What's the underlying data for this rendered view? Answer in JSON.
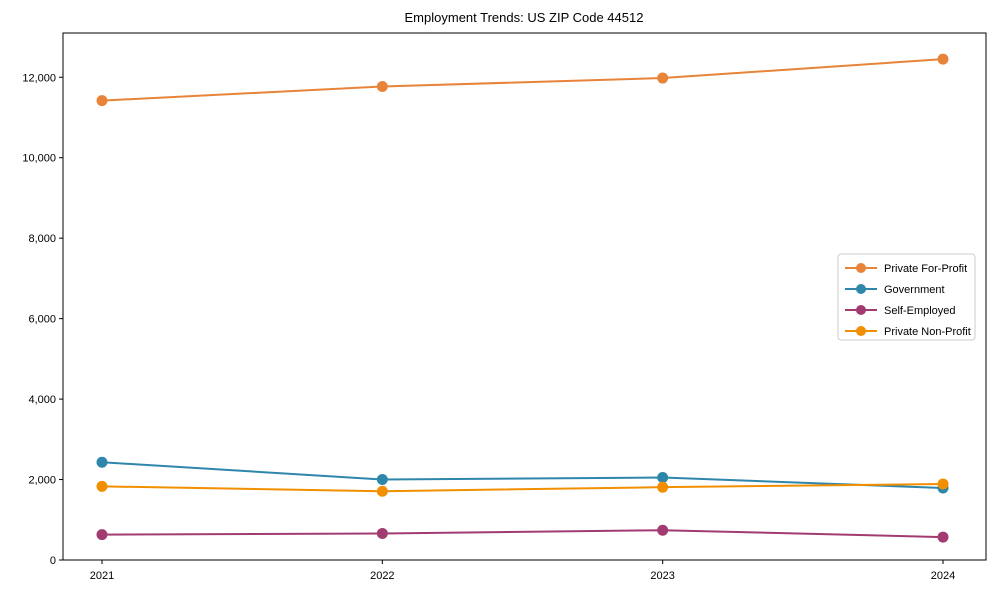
{
  "chart_data": {
    "type": "line",
    "title": "Employment Trends: US ZIP Code 44512",
    "xlabel": "",
    "ylabel": "",
    "categories": [
      "2021",
      "2022",
      "2023",
      "2024"
    ],
    "series": [
      {
        "name": "Private For-Profit",
        "color": "#E8833A",
        "values": [
          11420,
          11770,
          11980,
          12450
        ]
      },
      {
        "name": "Government",
        "color": "#2E86AB",
        "values": [
          2430,
          2000,
          2050,
          1790
        ]
      },
      {
        "name": "Self-Employed",
        "color": "#A23B72",
        "values": [
          630,
          660,
          740,
          570
        ]
      },
      {
        "name": "Private Non-Profit",
        "color": "#F18F01",
        "values": [
          1830,
          1710,
          1810,
          1890
        ]
      }
    ],
    "ylim": [
      0,
      13100
    ],
    "yticks": [
      0,
      2000,
      4000,
      6000,
      8000,
      10000,
      12000
    ],
    "ytick_labels": [
      "0",
      "2,000",
      "4,000",
      "6,000",
      "8,000",
      "10,000",
      "12,000"
    ],
    "grid": false,
    "legend_position": "middle-right",
    "axis_color": "#000000",
    "legend_border_color": "#cccccc",
    "legend_background": "#ffffff"
  }
}
